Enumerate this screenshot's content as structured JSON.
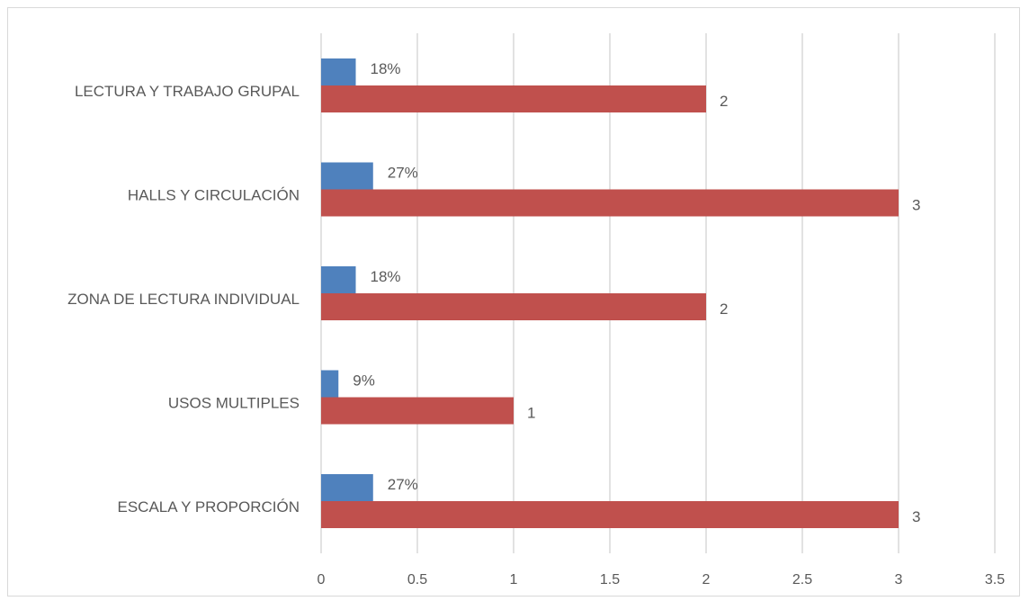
{
  "chart_data": {
    "type": "bar",
    "orientation": "horizontal",
    "categories": [
      "ESCALA Y PROPORCIÓN",
      "USOS MULTIPLES",
      "ZONA DE LECTURA INDIVIDUAL",
      "HALLS Y CIRCULACIÓN",
      "LECTURA Y TRABAJO GRUPAL"
    ],
    "series": [
      {
        "values": [
          0.27,
          0.09,
          0.18,
          0.27,
          0.18
        ],
        "data_labels": [
          "27%",
          "9%",
          "18%",
          "27%",
          "18%"
        ],
        "color": "#4f81bd"
      },
      {
        "values": [
          3,
          1,
          2,
          3,
          2
        ],
        "data_labels": [
          "3",
          "1",
          "2",
          "3",
          "2"
        ],
        "color": "#c0504d"
      }
    ],
    "xlim": [
      0,
      3.5
    ],
    "x_ticks": [
      "0",
      "0.5",
      "1",
      "1.5",
      "2",
      "2.5",
      "3",
      "3.5"
    ],
    "grid": "vertical",
    "gridline_color": "#d9d9d9",
    "legend": "none",
    "title": "",
    "xlabel": "",
    "ylabel": ""
  }
}
